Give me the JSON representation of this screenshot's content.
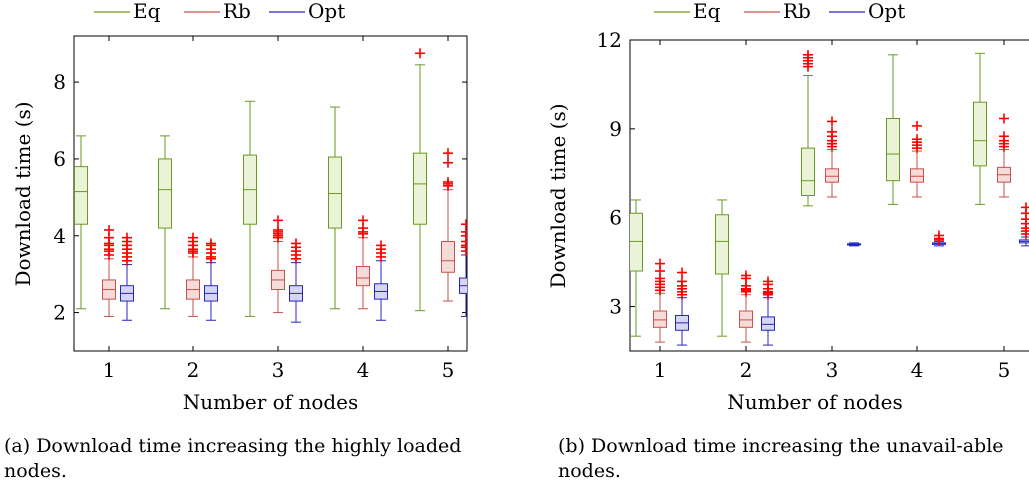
{
  "chart_data": [
    {
      "type": "box",
      "xlabel": "Number of nodes",
      "ylabel": "Download time (s)",
      "categories": [
        "1",
        "2",
        "3",
        "4",
        "5"
      ],
      "yticks": [
        "2",
        "4",
        "6",
        "8"
      ],
      "ylim": [
        1,
        9.2
      ],
      "legend_position": "top",
      "caption": "(a) Download time increasing the highly loaded nodes.",
      "series": [
        {
          "name": "Eq",
          "color": "#6a9a1f",
          "fill": "#eaf3d8",
          "outlier_color": "#ff0000",
          "boxes": [
            {
              "min": 2.1,
              "q1": 4.3,
              "median": 5.15,
              "q3": 5.8,
              "max": 6.6,
              "outliers": []
            },
            {
              "min": 2.1,
              "q1": 4.2,
              "median": 5.2,
              "q3": 6.0,
              "max": 6.6,
              "outliers": []
            },
            {
              "min": 1.9,
              "q1": 4.3,
              "median": 5.2,
              "q3": 6.1,
              "max": 7.5,
              "outliers": []
            },
            {
              "min": 2.1,
              "q1": 4.2,
              "median": 5.1,
              "q3": 6.05,
              "max": 7.35,
              "outliers": []
            },
            {
              "min": 2.05,
              "q1": 4.3,
              "median": 5.35,
              "q3": 6.15,
              "max": 8.45,
              "outliers": [
                8.75
              ]
            }
          ]
        },
        {
          "name": "Rb",
          "color": "#c8504a",
          "fill": "#f7dbd8",
          "outlier_color": "#ff0000",
          "boxes": [
            {
              "min": 1.9,
              "q1": 2.35,
              "median": 2.6,
              "q3": 2.85,
              "max": 3.4,
              "outliers": [
                3.5,
                3.6,
                3.65,
                3.75,
                3.8,
                3.95,
                4.15
              ]
            },
            {
              "min": 1.9,
              "q1": 2.35,
              "median": 2.6,
              "q3": 2.85,
              "max": 3.45,
              "outliers": [
                3.55,
                3.6,
                3.65,
                3.75,
                3.85,
                3.95
              ]
            },
            {
              "min": 2.0,
              "q1": 2.6,
              "median": 2.85,
              "q3": 3.1,
              "max": 3.85,
              "outliers": [
                3.95,
                4.0,
                4.05,
                4.1,
                4.15,
                4.4
              ]
            },
            {
              "min": 2.1,
              "q1": 2.7,
              "median": 2.9,
              "q3": 3.2,
              "max": 3.95,
              "outliers": [
                4.05,
                4.1,
                4.2,
                4.4
              ]
            },
            {
              "min": 2.3,
              "q1": 3.05,
              "median": 3.35,
              "q3": 3.85,
              "max": 5.2,
              "outliers": [
                5.3,
                5.35,
                5.4,
                5.9,
                6.15
              ]
            }
          ]
        },
        {
          "name": "Opt",
          "color": "#2424c0",
          "fill": "#d6d6f4",
          "outlier_color": "#ff0000",
          "boxes": [
            {
              "min": 1.8,
              "q1": 2.3,
              "median": 2.5,
              "q3": 2.7,
              "max": 3.25,
              "outliers": [
                3.35,
                3.45,
                3.55,
                3.65,
                3.75,
                3.85,
                3.95
              ]
            },
            {
              "min": 1.8,
              "q1": 2.3,
              "median": 2.5,
              "q3": 2.7,
              "max": 3.3,
              "outliers": [
                3.4,
                3.45,
                3.55,
                3.65,
                3.75,
                3.8
              ]
            },
            {
              "min": 1.75,
              "q1": 2.3,
              "median": 2.5,
              "q3": 2.7,
              "max": 3.3,
              "outliers": [
                3.4,
                3.5,
                3.6,
                3.7,
                3.8
              ]
            },
            {
              "min": 1.8,
              "q1": 2.35,
              "median": 2.55,
              "q3": 2.75,
              "max": 3.35,
              "outliers": [
                3.45,
                3.55,
                3.65,
                3.75
              ]
            },
            {
              "min": 1.9,
              "q1": 2.5,
              "median": 2.7,
              "q3": 2.9,
              "max": 3.5,
              "outliers": [
                3.6,
                3.7,
                3.75,
                3.85,
                4.0,
                4.1,
                4.3
              ]
            }
          ]
        }
      ]
    },
    {
      "type": "box",
      "xlabel": "Number of nodes",
      "ylabel": "Download time (s)",
      "categories": [
        "1",
        "2",
        "3",
        "4",
        "5"
      ],
      "yticks": [
        "3",
        "6",
        "9",
        "12"
      ],
      "ylim": [
        1.5,
        12
      ],
      "legend_position": "top",
      "caption": "(b) Download time increasing the unavail-able nodes.",
      "series": [
        {
          "name": "Eq",
          "color": "#6a9a1f",
          "fill": "#eaf3d8",
          "outlier_color": "#ff0000",
          "boxes": [
            {
              "min": 2.0,
              "q1": 4.2,
              "median": 5.2,
              "q3": 6.15,
              "max": 6.6,
              "outliers": []
            },
            {
              "min": 2.0,
              "q1": 4.1,
              "median": 5.2,
              "q3": 6.1,
              "max": 6.6,
              "outliers": []
            },
            {
              "min": 6.4,
              "q1": 6.75,
              "median": 7.25,
              "q3": 8.35,
              "max": 10.8,
              "outliers": [
                11.1,
                11.2,
                11.3,
                11.4,
                11.5
              ]
            },
            {
              "min": 6.45,
              "q1": 7.25,
              "median": 8.15,
              "q3": 9.35,
              "max": 11.5,
              "outliers": []
            },
            {
              "min": 6.45,
              "q1": 7.75,
              "median": 8.6,
              "q3": 9.9,
              "max": 11.55,
              "outliers": []
            }
          ]
        },
        {
          "name": "Rb",
          "color": "#c8504a",
          "fill": "#f7dbd8",
          "outlier_color": "#ff0000",
          "boxes": [
            {
              "min": 1.8,
              "q1": 2.3,
              "median": 2.55,
              "q3": 2.85,
              "max": 3.45,
              "outliers": [
                3.55,
                3.65,
                3.75,
                3.85,
                3.95,
                4.2,
                4.45
              ]
            },
            {
              "min": 1.8,
              "q1": 2.3,
              "median": 2.55,
              "q3": 2.85,
              "max": 3.4,
              "outliers": [
                3.5,
                3.55,
                3.6,
                3.7,
                3.95,
                4.05
              ]
            },
            {
              "min": 6.7,
              "q1": 7.2,
              "median": 7.4,
              "q3": 7.65,
              "max": 8.3,
              "outliers": [
                8.4,
                8.5,
                8.6,
                8.75,
                8.9,
                9.25
              ]
            },
            {
              "min": 6.7,
              "q1": 7.2,
              "median": 7.4,
              "q3": 7.65,
              "max": 8.25,
              "outliers": [
                8.35,
                8.45,
                8.55,
                8.65,
                9.1
              ]
            },
            {
              "min": 6.7,
              "q1": 7.2,
              "median": 7.45,
              "q3": 7.7,
              "max": 8.3,
              "outliers": [
                8.4,
                8.5,
                8.6,
                8.75,
                9.35
              ]
            }
          ]
        },
        {
          "name": "Opt",
          "color": "#2424c0",
          "fill": "#d6d6f4",
          "outlier_color": "#ff0000",
          "boxes": [
            {
              "min": 1.7,
              "q1": 2.2,
              "median": 2.45,
              "q3": 2.7,
              "max": 3.3,
              "outliers": [
                3.4,
                3.5,
                3.6,
                3.7,
                3.85,
                4.15
              ]
            },
            {
              "min": 1.7,
              "q1": 2.2,
              "median": 2.4,
              "q3": 2.65,
              "max": 3.3,
              "outliers": [
                3.4,
                3.45,
                3.5,
                3.6,
                3.75,
                3.85
              ]
            },
            {
              "min": 5.05,
              "q1": 5.08,
              "median": 5.1,
              "q3": 5.12,
              "max": 5.15,
              "outliers": []
            },
            {
              "min": 5.05,
              "q1": 5.1,
              "median": 5.12,
              "q3": 5.15,
              "max": 5.2,
              "outliers": [
                5.25,
                5.3,
                5.4
              ]
            },
            {
              "min": 5.05,
              "q1": 5.15,
              "median": 5.2,
              "q3": 5.25,
              "max": 5.35,
              "outliers": [
                5.45,
                5.55,
                5.65,
                5.8,
                5.95,
                6.15,
                6.35
              ]
            }
          ]
        }
      ]
    }
  ]
}
